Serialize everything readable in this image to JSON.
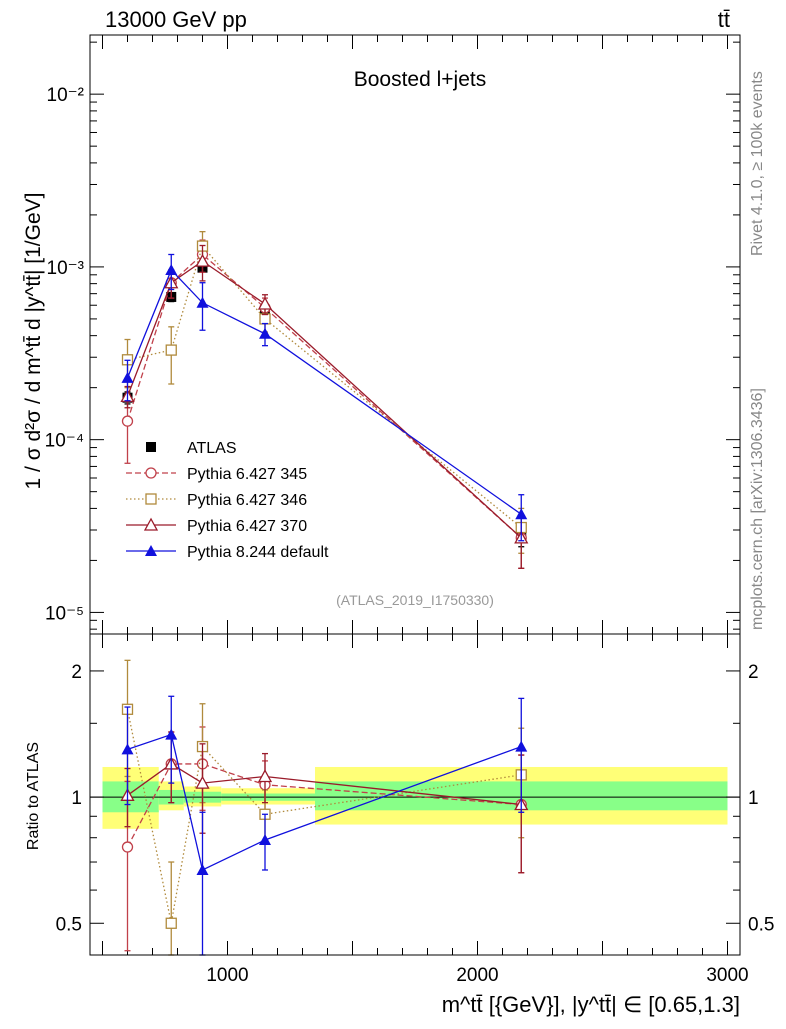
{
  "header": {
    "energy_label": "13000 GeV pp",
    "process_label": "tt̄"
  },
  "plot_title": "Boosted l+jets",
  "analysis_id": "(ATLAS_2019_I1750330)",
  "side_labels": {
    "rivet": "Rivet 4.1.0, ≥ 100k events",
    "mcplots": "mcplots.cern.ch [arXiv:1306.3436]"
  },
  "colors": {
    "atlas": "#000000",
    "py345": "#c0404a",
    "py346": "#b08a3c",
    "py370": "#9a1b2a",
    "py8": "#1010dd",
    "band_yellow": "#ffff77",
    "band_green": "#88ff88"
  },
  "chart_data": [
    {
      "type": "scatter",
      "panel": "main",
      "title": "Boosted l+jets",
      "ylabel": "1 / σ d²σ / d m^tt̄ d |y^tt̄| [1/GeV]",
      "yscale": "log",
      "ylim": [
        7.5e-06,
        0.022
      ],
      "xlim": [
        450,
        3050
      ],
      "ytick_labels": [
        "10⁻²",
        "10⁻³",
        "10⁻⁴",
        "10⁻⁵"
      ],
      "x": [
        600,
        775,
        900,
        1150,
        2175
      ],
      "x_bins": [
        [
          500,
          725
        ],
        [
          725,
          825
        ],
        [
          825,
          975
        ],
        [
          975,
          1350
        ],
        [
          1350,
          3000
        ]
      ],
      "series": [
        {
          "name": "ATLAS",
          "key": "atlas",
          "marker": "square-filled",
          "line": "none",
          "values": [
            0.000175,
            0.00067,
            0.00099,
            0.00054,
            2.8e-05
          ],
          "err_lo": [
            1.4e-05,
            4e-05,
            6e-05,
            3.5e-05,
            4e-06
          ],
          "err_hi": [
            1.4e-05,
            4e-05,
            6e-05,
            3.5e-05,
            4e-06
          ]
        },
        {
          "name": "Pythia 6.427 345",
          "key": "py345",
          "marker": "circle-open",
          "line": "dashed",
          "values": [
            0.000128,
            0.00081,
            0.00118,
            0.00058,
            2.7e-05
          ],
          "err_lo": [
            5.5e-05,
            0.00015,
            0.00025,
            8e-05,
            9e-06
          ],
          "err_hi": [
            5.5e-05,
            0.00015,
            0.00025,
            8e-05,
            9e-06
          ]
        },
        {
          "name": "Pythia 6.427 346",
          "key": "py346",
          "marker": "square-open",
          "line": "dotted",
          "values": [
            0.00029,
            0.00033,
            0.00132,
            0.0005,
            3.1e-05
          ],
          "err_lo": [
            9e-05,
            0.00012,
            0.00028,
            8e-05,
            9e-06
          ],
          "err_hi": [
            9e-05,
            0.00012,
            0.00028,
            8e-05,
            9e-06
          ]
        },
        {
          "name": "Pythia 6.427 370",
          "key": "py370",
          "marker": "triangle-open",
          "line": "solid",
          "values": [
            0.000178,
            0.00081,
            0.00108,
            0.00061,
            2.7e-05
          ],
          "err_lo": [
            2.5e-05,
            0.00015,
            0.00025,
            8e-05,
            9e-06
          ],
          "err_hi": [
            2.5e-05,
            0.00015,
            0.00025,
            8e-05,
            9e-06
          ]
        },
        {
          "name": "Pythia 8.244 default",
          "key": "py8",
          "marker": "triangle-filled",
          "line": "solid",
          "values": [
            0.000228,
            0.00096,
            0.00062,
            0.00041,
            3.7e-05
          ],
          "err_lo": [
            6e-05,
            0.00022,
            0.00019,
            6e-05,
            1.1e-05
          ],
          "err_hi": [
            6e-05,
            0.00022,
            0.00019,
            6e-05,
            1.1e-05
          ]
        }
      ]
    },
    {
      "type": "scatter",
      "panel": "ratio",
      "ylabel": "Ratio to ATLAS",
      "xlabel": "m^tt̄ [{GeV}], |y^tt̄| ∈ [0.65,1.3]",
      "yscale": "log",
      "ylim": [
        0.42,
        2.45
      ],
      "xlim": [
        450,
        3050
      ],
      "xticks": [
        1000,
        2000,
        3000
      ],
      "xtick_labels": [
        "1000",
        "2000",
        "3000"
      ],
      "yticks": [
        0.5,
        1,
        2
      ],
      "ytick_labels": [
        "0.5",
        "1",
        "2"
      ],
      "x": [
        600,
        775,
        900,
        1150,
        2175
      ],
      "bands": {
        "bins": [
          [
            500,
            725
          ],
          [
            725,
            825
          ],
          [
            825,
            975
          ],
          [
            975,
            1350
          ],
          [
            1350,
            3000
          ]
        ],
        "yellow": [
          [
            0.84,
            1.18
          ],
          [
            0.93,
            1.09
          ],
          [
            0.95,
            1.06
          ],
          [
            0.96,
            1.05
          ],
          [
            0.86,
            1.18
          ]
        ],
        "green": [
          [
            0.92,
            1.09
          ],
          [
            0.96,
            1.04
          ],
          [
            0.97,
            1.03
          ],
          [
            0.98,
            1.02
          ],
          [
            0.93,
            1.09
          ]
        ]
      },
      "series": [
        {
          "name": "Pythia 6.427 345",
          "key": "py345",
          "marker": "circle-open",
          "line": "dashed",
          "values": [
            0.76,
            1.2,
            1.2,
            1.07,
            0.96
          ],
          "err_lo": [
            0.33,
            0.23,
            0.27,
            0.15,
            0.3
          ],
          "err_hi": [
            0.33,
            0.23,
            0.27,
            0.15,
            0.3
          ]
        },
        {
          "name": "Pythia 6.427 346",
          "key": "py346",
          "marker": "square-open",
          "line": "dotted",
          "values": [
            1.62,
            0.5,
            1.32,
            0.91,
            1.13
          ],
          "err_lo": [
            0.5,
            0.2,
            0.35,
            0.13,
            0.33
          ],
          "err_hi": [
            0.5,
            0.2,
            0.35,
            0.13,
            0.33
          ]
        },
        {
          "name": "Pythia 6.427 370",
          "key": "py370",
          "marker": "triangle-open",
          "line": "solid",
          "values": [
            1.01,
            1.2,
            1.08,
            1.12,
            0.96
          ],
          "err_lo": [
            0.16,
            0.23,
            0.26,
            0.15,
            0.3
          ],
          "err_hi": [
            0.16,
            0.23,
            0.26,
            0.15,
            0.3
          ]
        },
        {
          "name": "Pythia 8.244 default",
          "key": "py8",
          "marker": "triangle-filled",
          "line": "solid",
          "values": [
            1.3,
            1.41,
            0.67,
            0.79,
            1.32
          ],
          "err_lo": [
            0.34,
            0.33,
            0.25,
            0.12,
            0.4
          ],
          "err_hi": [
            0.34,
            0.33,
            0.25,
            0.12,
            0.4
          ]
        }
      ]
    }
  ]
}
